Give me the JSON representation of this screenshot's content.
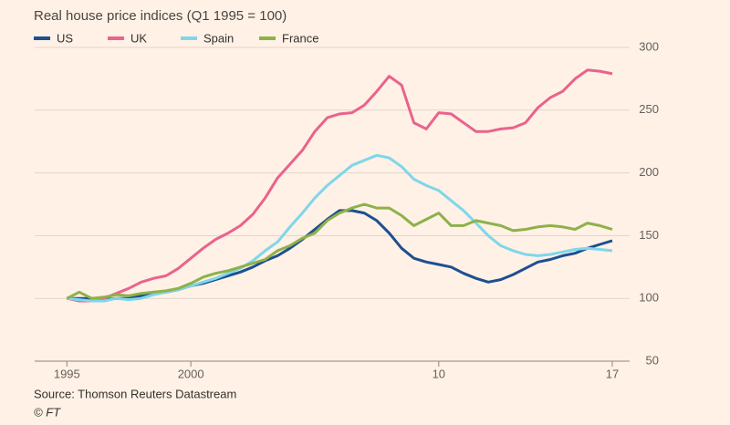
{
  "chart_data": {
    "type": "line",
    "title": "Real house price indices (Q1 1995 = 100)",
    "source": "Source: Thomson Reuters Datastream",
    "credit": "© FT",
    "x": [
      1995,
      1995.5,
      1996,
      1996.5,
      1997,
      1997.5,
      1998,
      1998.5,
      1999,
      1999.5,
      2000,
      2000.5,
      2001,
      2001.5,
      2002,
      2002.5,
      2003,
      2003.5,
      2004,
      2004.5,
      2005,
      2005.5,
      2006,
      2006.5,
      2007,
      2007.5,
      2008,
      2008.5,
      2009,
      2009.5,
      2010,
      2010.5,
      2011,
      2011.5,
      2012,
      2012.5,
      2013,
      2013.5,
      2014,
      2014.5,
      2015,
      2015.5,
      2016,
      2016.5,
      2017
    ],
    "series": [
      {
        "name": "US",
        "color": "#1d4f91",
        "values": [
          100,
          100,
          100,
          99,
          100,
          100,
          102,
          104,
          105,
          107,
          110,
          112,
          115,
          118,
          121,
          125,
          130,
          134,
          140,
          147,
          155,
          163,
          170,
          170,
          168,
          162,
          152,
          140,
          132,
          129,
          127,
          125,
          120,
          116,
          113,
          115,
          119,
          124,
          129,
          131,
          134,
          136,
          140,
          143,
          146
        ]
      },
      {
        "name": "UK",
        "color": "#e9638d",
        "values": [
          100,
          98,
          98,
          100,
          104,
          108,
          113,
          116,
          118,
          124,
          132,
          140,
          147,
          152,
          158,
          167,
          180,
          196,
          207,
          218,
          233,
          244,
          247,
          248,
          254,
          265,
          277,
          270,
          240,
          235,
          248,
          247,
          240,
          233,
          233,
          235,
          236,
          240,
          252,
          260,
          265,
          275,
          282,
          281,
          279
        ]
      },
      {
        "name": "Spain",
        "color": "#7fd6ea",
        "values": [
          100,
          99,
          98,
          98,
          100,
          99,
          100,
          103,
          105,
          107,
          110,
          113,
          116,
          120,
          124,
          130,
          138,
          145,
          157,
          168,
          180,
          190,
          198,
          206,
          210,
          214,
          212,
          205,
          195,
          190,
          186,
          178,
          170,
          160,
          150,
          142,
          138,
          135,
          134,
          135,
          137,
          139,
          140,
          139,
          138
        ]
      },
      {
        "name": "France",
        "color": "#8eb14a",
        "values": [
          100,
          105,
          100,
          101,
          103,
          102,
          104,
          105,
          106,
          108,
          112,
          117,
          120,
          122,
          125,
          128,
          131,
          138,
          142,
          148,
          152,
          162,
          168,
          172,
          175,
          172,
          172,
          166,
          158,
          163,
          168,
          158,
          158,
          162,
          160,
          158,
          154,
          155,
          157,
          158,
          157,
          155,
          160,
          158,
          155
        ]
      }
    ],
    "xlim": [
      1993.7,
      2017.7
    ],
    "xticks": [
      1995,
      2000,
      {
        "value": 2010,
        "label": "10"
      },
      {
        "value": 2017,
        "label": "17"
      }
    ],
    "ylim": [
      50,
      300
    ],
    "yticks": [
      50,
      100,
      150,
      200,
      250,
      300
    ],
    "grid": true
  }
}
